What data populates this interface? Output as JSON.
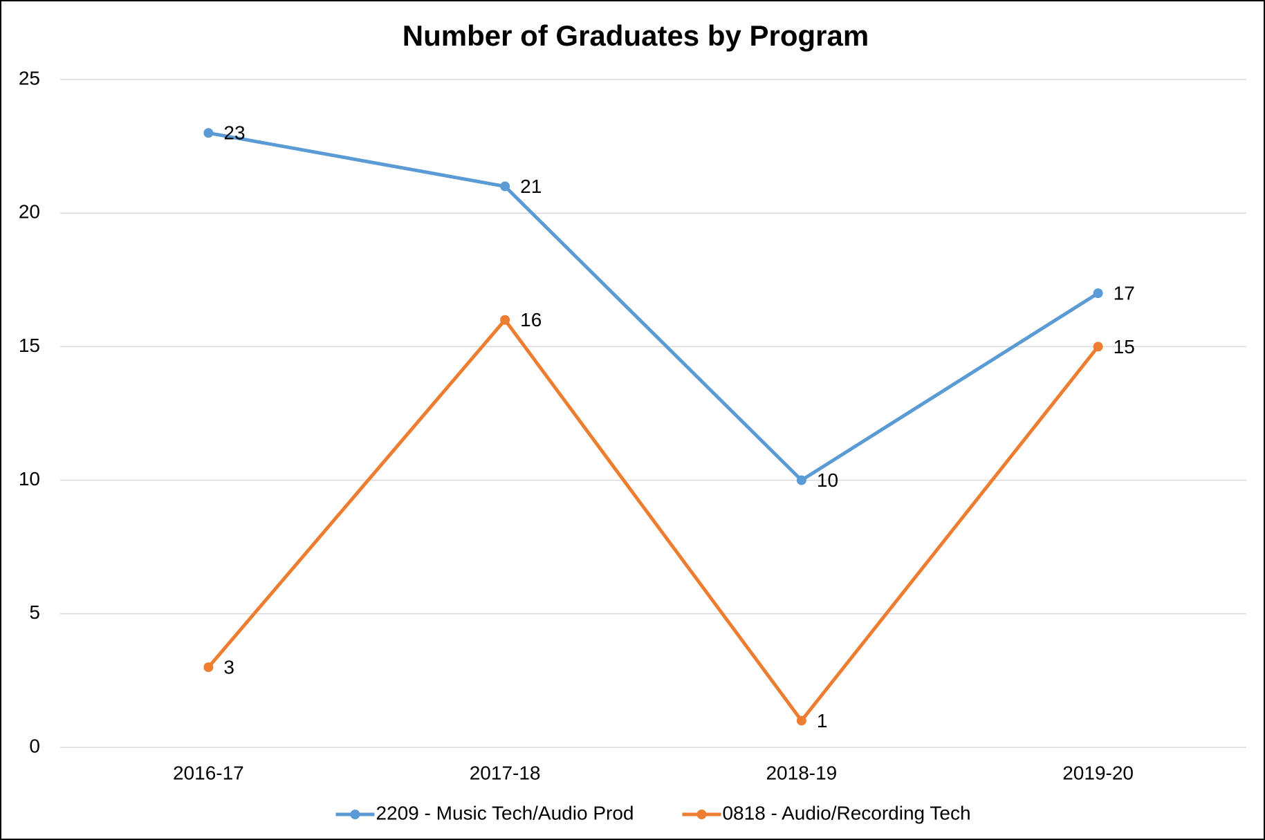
{
  "chart_data": {
    "type": "line",
    "title": "Number of Graduates by Program",
    "categories": [
      "2016-17",
      "2017-18",
      "2018-19",
      "2019-20"
    ],
    "series": [
      {
        "name": "2209 - Music Tech/Audio Prod",
        "color": "#5b9bd5",
        "values": [
          23,
          21,
          10,
          17
        ]
      },
      {
        "name": "0818 - Audio/Recording Tech",
        "color": "#ed7d31",
        "values": [
          3,
          16,
          1,
          15
        ]
      }
    ],
    "ylim": [
      0,
      25
    ],
    "yticks": [
      0,
      5,
      10,
      15,
      20,
      25
    ],
    "grid": true,
    "legend": "bottom",
    "data_labels": true
  }
}
